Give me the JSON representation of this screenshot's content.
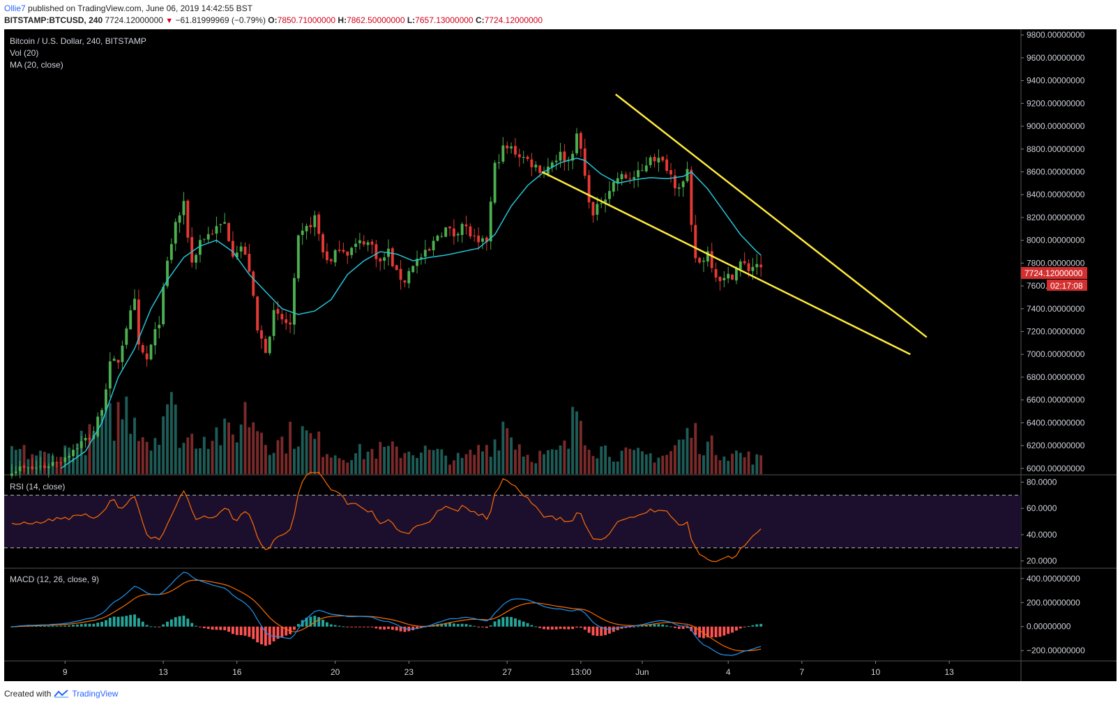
{
  "header": {
    "author": "Ollie7",
    "published_text": " published on TradingView.com, June 06, 2019 14:42:55 BST"
  },
  "symbol_bar": {
    "symbol": "BITSTAMP:BTCUSD,",
    "interval": "240",
    "last": "7724.12000000",
    "change": "−61.81999969 (−0.79%)",
    "open_label": "O:",
    "open": "7850.71000000",
    "high_label": "H:",
    "high": "7862.50000000",
    "low_label": "L:",
    "low": "7657.13000000",
    "close_label": "C:",
    "close": "7724.12000000"
  },
  "legend": {
    "title": "Bitcoin / U.S. Dollar, 240, BITSTAMP",
    "vol": "Vol (20)",
    "ma": "MA (20, close)",
    "rsi": "RSI (14, close)",
    "macd": "MACD (12, 26, close, 9)"
  },
  "price_tag": {
    "value": "7724.12000000",
    "countdown": "02:17:08"
  },
  "footer": {
    "prefix": "Created with",
    "brand": "TradingView"
  },
  "colors": {
    "up": "#4caf50",
    "down": "#e53935",
    "ma": "#26c6da",
    "trendline": "#ffeb3b",
    "rsi_line": "#ff6d00",
    "rsi_band": "#1c0f2e",
    "macd": "#2196f3",
    "signal": "#ff6d00",
    "hist_up": "#26a69a",
    "hist_down": "#ff5252",
    "vol_up": "#1e5c57",
    "vol_down": "#7a2a2a",
    "price_tag": "#d32f2f"
  },
  "chart_data": [
    {
      "type": "candlestick",
      "title": "Bitcoin / U.S. Dollar, 240, BITSTAMP",
      "ylim": [
        5950,
        9850
      ],
      "yticks": [
        "9800.00000000",
        "9600.00000000",
        "9400.00000000",
        "9200.00000000",
        "9000.00000000",
        "8800.00000000",
        "8600.00000000",
        "8400.00000000",
        "8200.00000000",
        "8000.00000000",
        "7800.00000000",
        "7600.00000000",
        "7400.00000000",
        "7200.00000000",
        "7000.00000000",
        "6800.00000000",
        "6600.00000000",
        "6400.00000000",
        "6200.00000000",
        "6000.00000000"
      ],
      "ytick_values": [
        9800,
        9600,
        9400,
        9200,
        9000,
        8800,
        8600,
        8400,
        8200,
        8000,
        7800,
        7600,
        7400,
        7200,
        7000,
        6800,
        6600,
        6400,
        6200,
        6000
      ],
      "xticks": [
        {
          "label": "9",
          "bar": 13
        },
        {
          "label": "13",
          "bar": 37
        },
        {
          "label": "16",
          "bar": 55
        },
        {
          "label": "20",
          "bar": 79
        },
        {
          "label": "23",
          "bar": 97
        },
        {
          "label": "27",
          "bar": 121
        },
        {
          "label": "13:00",
          "bar": 139
        },
        {
          "label": "Jun",
          "bar": 154
        },
        {
          "label": "4",
          "bar": 175
        },
        {
          "label": "7",
          "bar": 193
        },
        {
          "label": "10",
          "bar": 211
        },
        {
          "label": "13",
          "bar": 229
        }
      ],
      "anchors": [
        [
          0,
          6000
        ],
        [
          4,
          5990
        ],
        [
          8,
          6020
        ],
        [
          12,
          6080
        ],
        [
          16,
          6200
        ],
        [
          20,
          6300
        ],
        [
          22,
          6550
        ],
        [
          24,
          6900
        ],
        [
          26,
          6950
        ],
        [
          28,
          7250
        ],
        [
          30,
          7450
        ],
        [
          31,
          7050
        ],
        [
          33,
          6950
        ],
        [
          36,
          7300
        ],
        [
          38,
          7800
        ],
        [
          40,
          8150
        ],
        [
          42,
          8300
        ],
        [
          44,
          7800
        ],
        [
          46,
          8000
        ],
        [
          48,
          8050
        ],
        [
          50,
          8100
        ],
        [
          52,
          8150
        ],
        [
          54,
          7900
        ],
        [
          56,
          7950
        ],
        [
          58,
          7750
        ],
        [
          60,
          7200
        ],
        [
          62,
          7050
        ],
        [
          64,
          7350
        ],
        [
          66,
          7300
        ],
        [
          68,
          7250
        ],
        [
          70,
          8000
        ],
        [
          72,
          8100
        ],
        [
          74,
          8200
        ],
        [
          76,
          7900
        ],
        [
          78,
          7800
        ],
        [
          80,
          7950
        ],
        [
          82,
          7900
        ],
        [
          84,
          7950
        ],
        [
          86,
          8000
        ],
        [
          88,
          7950
        ],
        [
          90,
          7800
        ],
        [
          92,
          7900
        ],
        [
          94,
          7700
        ],
        [
          96,
          7650
        ],
        [
          98,
          7800
        ],
        [
          100,
          7850
        ],
        [
          102,
          7900
        ],
        [
          104,
          8050
        ],
        [
          106,
          8100
        ],
        [
          108,
          8050
        ],
        [
          110,
          8150
        ],
        [
          112,
          8050
        ],
        [
          114,
          7950
        ],
        [
          116,
          8000
        ],
        [
          118,
          8650
        ],
        [
          120,
          8800
        ],
        [
          122,
          8800
        ],
        [
          124,
          8750
        ],
        [
          126,
          8700
        ],
        [
          128,
          8650
        ],
        [
          130,
          8600
        ],
        [
          132,
          8700
        ],
        [
          134,
          8750
        ],
        [
          136,
          8700
        ],
        [
          138,
          8900
        ],
        [
          139,
          8800
        ],
        [
          140,
          8550
        ],
        [
          142,
          8200
        ],
        [
          144,
          8350
        ],
        [
          146,
          8450
        ],
        [
          148,
          8550
        ],
        [
          150,
          8550
        ],
        [
          152,
          8550
        ],
        [
          154,
          8600
        ],
        [
          156,
          8750
        ],
        [
          158,
          8700
        ],
        [
          160,
          8650
        ],
        [
          162,
          8500
        ],
        [
          164,
          8500
        ],
        [
          165,
          8580
        ],
        [
          166,
          8100
        ],
        [
          167,
          7850
        ],
        [
          168,
          7800
        ],
        [
          170,
          7900
        ],
        [
          172,
          7700
        ],
        [
          174,
          7650
        ],
        [
          176,
          7700
        ],
        [
          178,
          7800
        ],
        [
          180,
          7750
        ],
        [
          182,
          7800
        ],
        [
          183,
          7724
        ]
      ],
      "ma_anchors": [
        [
          12,
          6000
        ],
        [
          18,
          6150
        ],
        [
          22,
          6400
        ],
        [
          26,
          6800
        ],
        [
          30,
          7050
        ],
        [
          34,
          7400
        ],
        [
          38,
          7650
        ],
        [
          42,
          7850
        ],
        [
          46,
          7950
        ],
        [
          50,
          8000
        ],
        [
          54,
          7900
        ],
        [
          58,
          7700
        ],
        [
          62,
          7550
        ],
        [
          66,
          7400
        ],
        [
          70,
          7350
        ],
        [
          74,
          7380
        ],
        [
          78,
          7480
        ],
        [
          82,
          7700
        ],
        [
          86,
          7820
        ],
        [
          90,
          7900
        ],
        [
          94,
          7880
        ],
        [
          98,
          7820
        ],
        [
          102,
          7850
        ],
        [
          106,
          7870
        ],
        [
          110,
          7900
        ],
        [
          114,
          7930
        ],
        [
          118,
          8050
        ],
        [
          122,
          8300
        ],
        [
          126,
          8480
        ],
        [
          130,
          8600
        ],
        [
          134,
          8680
        ],
        [
          138,
          8720
        ],
        [
          140,
          8700
        ],
        [
          144,
          8580
        ],
        [
          148,
          8500
        ],
        [
          152,
          8530
        ],
        [
          156,
          8550
        ],
        [
          160,
          8540
        ],
        [
          164,
          8560
        ],
        [
          166,
          8600
        ],
        [
          170,
          8450
        ],
        [
          174,
          8250
        ],
        [
          178,
          8050
        ],
        [
          182,
          7900
        ],
        [
          183,
          7870
        ]
      ],
      "volume_anchors": [
        [
          0,
          0.25
        ],
        [
          10,
          0.18
        ],
        [
          20,
          0.4
        ],
        [
          28,
          0.7
        ],
        [
          30,
          0.65
        ],
        [
          34,
          0.3
        ],
        [
          38,
          0.8
        ],
        [
          42,
          0.35
        ],
        [
          48,
          0.45
        ],
        [
          54,
          0.4
        ],
        [
          57,
          0.65
        ],
        [
          60,
          0.55
        ],
        [
          64,
          0.3
        ],
        [
          70,
          0.45
        ],
        [
          74,
          0.35
        ],
        [
          80,
          0.2
        ],
        [
          90,
          0.25
        ],
        [
          100,
          0.25
        ],
        [
          110,
          0.15
        ],
        [
          118,
          0.35
        ],
        [
          120,
          0.55
        ],
        [
          126,
          0.2
        ],
        [
          132,
          0.2
        ],
        [
          136,
          0.3
        ],
        [
          138,
          0.75
        ],
        [
          142,
          0.3
        ],
        [
          150,
          0.2
        ],
        [
          160,
          0.2
        ],
        [
          166,
          0.45
        ],
        [
          170,
          0.3
        ],
        [
          174,
          0.25
        ],
        [
          183,
          0.15
        ]
      ],
      "trendlines": [
        {
          "from": [
            130,
            8600
          ],
          "to": [
            220,
            7000
          ]
        },
        {
          "from": [
            148,
            9280
          ],
          "to": [
            224,
            7150
          ]
        }
      ]
    },
    {
      "type": "line",
      "name": "RSI (14, close)",
      "ylim": [
        15,
        85
      ],
      "yticks": [
        "80.0000",
        "60.0000",
        "40.0000",
        "20.0000"
      ],
      "ytick_values": [
        80,
        60,
        40,
        20
      ],
      "bands": [
        30,
        70
      ]
    },
    {
      "type": "line",
      "name": "MACD (12, 26, close, 9)",
      "ylim": [
        -280,
        480
      ],
      "yticks": [
        "400.00000000",
        "200.00000000",
        "0.00000000",
        "−200.00000000"
      ],
      "ytick_values": [
        400,
        200,
        0,
        -200
      ]
    }
  ]
}
